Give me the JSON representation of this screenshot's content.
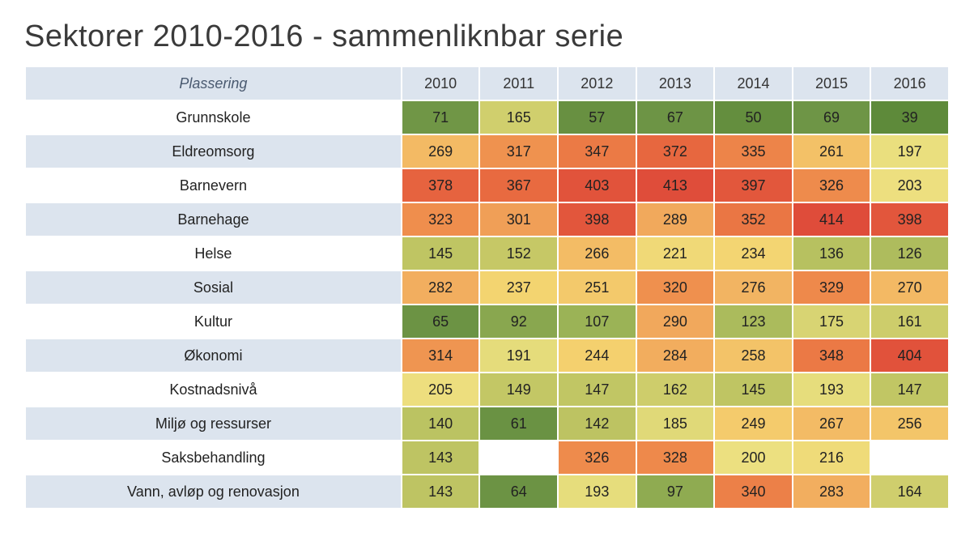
{
  "title": "Sektorer 2010-2016 - sammenliknbar serie",
  "corner_label": "Plassering",
  "years": [
    "2010",
    "2011",
    "2012",
    "2013",
    "2014",
    "2015",
    "2016"
  ],
  "header_bg": "#dce4ee",
  "stripe_bg": "#dce4ee",
  "background_color": "#ffffff",
  "title_fontsize": 38,
  "cell_fontsize": 18,
  "rowlabel_fontweight": 700,
  "color_scale": {
    "type": "sequential-green-yellow-red",
    "domain": [
      39,
      414
    ],
    "stops": [
      {
        "v": 39,
        "c": "#5e8a3a"
      },
      {
        "v": 70,
        "c": "#6f9546"
      },
      {
        "v": 110,
        "c": "#9fb557"
      },
      {
        "v": 150,
        "c": "#c4c765"
      },
      {
        "v": 200,
        "c": "#ece080"
      },
      {
        "v": 240,
        "c": "#f4d36f"
      },
      {
        "v": 280,
        "c": "#f2b060"
      },
      {
        "v": 320,
        "c": "#ef904e"
      },
      {
        "v": 360,
        "c": "#e96f41"
      },
      {
        "v": 414,
        "c": "#df4c3a"
      }
    ]
  },
  "rows": [
    {
      "label": "Grunnskole",
      "values": [
        71,
        165,
        57,
        67,
        50,
        69,
        39
      ]
    },
    {
      "label": "Eldreomsorg",
      "values": [
        269,
        317,
        347,
        372,
        335,
        261,
        197
      ]
    },
    {
      "label": "Barnevern",
      "values": [
        378,
        367,
        403,
        413,
        397,
        326,
        203
      ]
    },
    {
      "label": "Barnehage",
      "values": [
        323,
        301,
        398,
        289,
        352,
        414,
        398
      ]
    },
    {
      "label": "Helse",
      "values": [
        145,
        152,
        266,
        221,
        234,
        136,
        126
      ]
    },
    {
      "label": "Sosial",
      "values": [
        282,
        237,
        251,
        320,
        276,
        329,
        270
      ]
    },
    {
      "label": "Kultur",
      "values": [
        65,
        92,
        107,
        290,
        123,
        175,
        161
      ]
    },
    {
      "label": "Økonomi",
      "values": [
        314,
        191,
        244,
        284,
        258,
        348,
        404
      ]
    },
    {
      "label": "Kostnadsnivå",
      "values": [
        205,
        149,
        147,
        162,
        145,
        193,
        147
      ]
    },
    {
      "label": "Miljø og ressurser",
      "values": [
        140,
        61,
        142,
        185,
        249,
        267,
        256
      ]
    },
    {
      "label": "Saksbehandling",
      "values": [
        143,
        null,
        326,
        328,
        200,
        216,
        null
      ]
    },
    {
      "label": "Vann, avløp og renovasjon",
      "values": [
        143,
        64,
        193,
        97,
        340,
        283,
        164
      ]
    }
  ]
}
